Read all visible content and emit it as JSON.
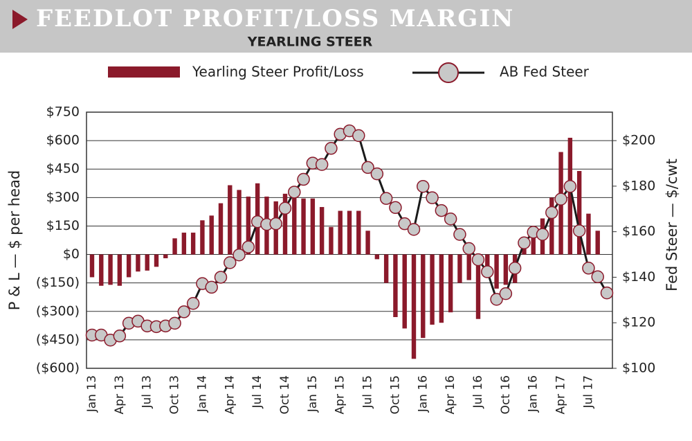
{
  "chart_data": {
    "type": "bar_line",
    "title": "FEEDLOT PROFIT/LOSS MARGIN",
    "subtitle": "YEARLING STEER",
    "y_label": "P & L — $ per head",
    "y2_label": "Fed Steer — $/cwt",
    "categories": [
      "Jan 13",
      null,
      null,
      "Apr 13",
      null,
      null,
      "Jul 13",
      null,
      null,
      "Oct 13",
      null,
      null,
      "Jan 14",
      null,
      null,
      "Apr 14",
      null,
      null,
      "Jul 14",
      null,
      null,
      "Oct 14",
      null,
      null,
      "Jan 15",
      null,
      null,
      "Apr 15",
      null,
      null,
      "Jul 15",
      null,
      null,
      "Oct 15",
      null,
      null,
      "Jan 16",
      null,
      null,
      "Apr 16",
      null,
      null,
      "Jul 16",
      null,
      null,
      "Oct 16",
      null,
      null,
      "Jan 16",
      null,
      null,
      "Apr 17",
      null,
      null,
      "Jul 17",
      null,
      null
    ],
    "series": [
      {
        "name": "Yearling Steer Profit/Loss",
        "color": "#8b1a2b",
        "kind": "bar",
        "values": [
          -120,
          -165,
          -160,
          -165,
          -120,
          -90,
          -85,
          -65,
          -20,
          85,
          115,
          115,
          180,
          205,
          270,
          365,
          340,
          305,
          375,
          305,
          280,
          320,
          300,
          295,
          295,
          250,
          145,
          230,
          230,
          230,
          125,
          -25,
          -150,
          -330,
          -390,
          -550,
          -440,
          -370,
          -360,
          -305,
          -150,
          -135,
          -340,
          -120,
          -180,
          -160,
          -150,
          70,
          150,
          190,
          300,
          540,
          615,
          440,
          215,
          125,
          null
        ]
      },
      {
        "name": "AB Fed Steer",
        "color": "#1a1a1a",
        "kind": "line",
        "axis": "y2",
        "values": [
          114.6,
          114.6,
          112.4,
          114.2,
          119.8,
          120.7,
          118.6,
          118.3,
          118.6,
          119.8,
          124.8,
          128.5,
          137.2,
          135.6,
          140,
          146.4,
          149.8,
          153.3,
          164.4,
          163.2,
          163.5,
          170.3,
          177.4,
          183,
          190.1,
          189.5,
          196.6,
          202.8,
          204.3,
          202.2,
          188.2,
          185.4,
          174.6,
          170.6,
          163.5,
          161,
          179.9,
          174.9,
          169.3,
          165.6,
          158.8,
          152.6,
          147.7,
          142.4,
          130.3,
          132.8,
          144,
          155.1,
          159.8,
          158.8,
          168.4,
          174.3,
          179.9,
          160.4,
          144,
          140.2,
          133.1
        ]
      }
    ],
    "ylim": [
      -600,
      750
    ],
    "yticks": [
      {
        "value": -600,
        "label": "($600)"
      },
      {
        "value": -450,
        "label": "($450)"
      },
      {
        "value": -300,
        "label": "($300)"
      },
      {
        "value": -150,
        "label": "($150)"
      },
      {
        "value": 0,
        "label": "$0"
      },
      {
        "value": 150,
        "label": "$150"
      },
      {
        "value": 300,
        "label": "$300"
      },
      {
        "value": 450,
        "label": "$450"
      },
      {
        "value": 600,
        "label": "$600"
      },
      {
        "value": 750,
        "label": "$750"
      }
    ],
    "y2lim": [
      100,
      212.5
    ],
    "y2ticks": [
      {
        "value": 100,
        "label": "$100"
      },
      {
        "value": 120,
        "label": "$120"
      },
      {
        "value": 140,
        "label": "$140"
      },
      {
        "value": 160,
        "label": "$160"
      },
      {
        "value": 180,
        "label": "$180"
      },
      {
        "value": 200,
        "label": "$200"
      }
    ],
    "grid": true
  }
}
